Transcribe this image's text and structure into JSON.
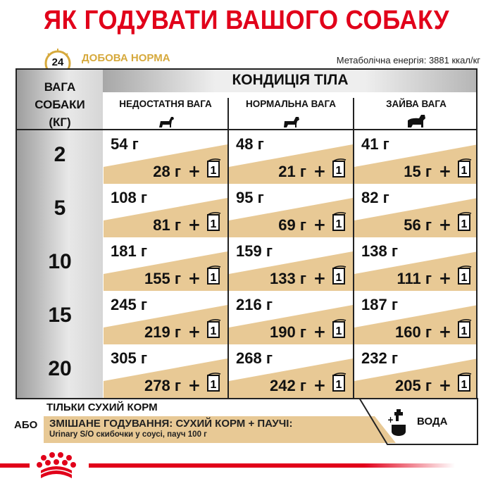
{
  "title": "ЯК ГОДУВАТИ ВАШОГО СОБАКУ",
  "clock_label": "24",
  "clock_sub": "години",
  "daily_norm": "ДОБОВА НОРМА",
  "energy": "Метаболічна енергія: 3881 ккал/кг",
  "table": {
    "weight_header": [
      "ВАГА",
      "СОБАКИ",
      "(КГ)"
    ],
    "condition_header": "КОНДИЦІЯ ТІЛА",
    "columns": [
      "НЕДОСТАТНЯ ВАГА",
      "НОРМАЛЬНА ВАГА",
      "ЗАЙВА ВАГА"
    ],
    "pouch_count": "1",
    "rows": [
      {
        "kg": "2",
        "cells": [
          {
            "dry": "54 г",
            "wet": "28 г"
          },
          {
            "dry": "48 г",
            "wet": "21 г"
          },
          {
            "dry": "41 г",
            "wet": "15 г"
          }
        ]
      },
      {
        "kg": "5",
        "cells": [
          {
            "dry": "108 г",
            "wet": "81 г"
          },
          {
            "dry": "95 г",
            "wet": "69 г"
          },
          {
            "dry": "82 г",
            "wet": "56 г"
          }
        ]
      },
      {
        "kg": "10",
        "cells": [
          {
            "dry": "181 г",
            "wet": "155 г"
          },
          {
            "dry": "159 г",
            "wet": "133 г"
          },
          {
            "dry": "138 г",
            "wet": "111 г"
          }
        ]
      },
      {
        "kg": "15",
        "cells": [
          {
            "dry": "245 г",
            "wet": "219 г"
          },
          {
            "dry": "216 г",
            "wet": "190 г"
          },
          {
            "dry": "187 г",
            "wet": "160 г"
          }
        ]
      },
      {
        "kg": "20",
        "cells": [
          {
            "dry": "305 г",
            "wet": "278 г"
          },
          {
            "dry": "268 г",
            "wet": "242 г"
          },
          {
            "dry": "232 г",
            "wet": "205 г"
          }
        ]
      }
    ]
  },
  "legend": {
    "dry_only": "ТІЛЬКИ СУХИЙ КОРМ",
    "or": "АБО",
    "mixed": "ЗМІШАНЕ ГОДУВАННЯ: СУХИЙ КОРМ + ПАУЧІ:",
    "mixed_detail": "Urinary S/O скибочки у соусі, пауч 100 г",
    "water": "ВОДА"
  },
  "colors": {
    "brand_red": "#e1001a",
    "tan": "#e8c995",
    "gold": "#d6a93c"
  }
}
